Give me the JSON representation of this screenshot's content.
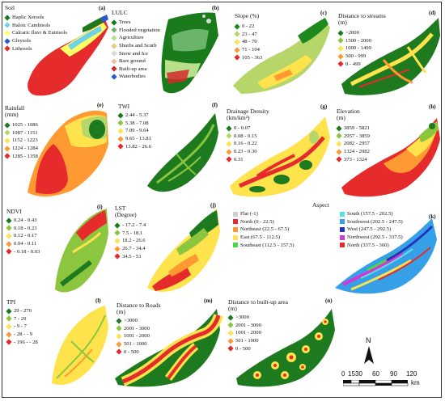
{
  "panels": [
    {
      "id": "soil",
      "label": "(a)",
      "title": "Soil",
      "legend_items": [
        {
          "text": "Haplic Xersols",
          "color": "#1e7a1e"
        },
        {
          "text": "Haloic Cambisols",
          "color": "#6fd2e6"
        },
        {
          "text": "Calcaric fluvi & Eutrisols",
          "color": "#ffff66"
        },
        {
          "text": "Gleysols",
          "color": "#2f57c9"
        },
        {
          "text": "Lithosols",
          "color": "#e52b2b"
        }
      ]
    },
    {
      "id": "lulc",
      "label": "(b)",
      "title": "LULC",
      "legend_items": [
        {
          "text": "Trees",
          "color": "#1b7a1b"
        },
        {
          "text": "Flooded vegetation",
          "color": "#6ab56a"
        },
        {
          "text": "Agriculture",
          "color": "#b8e08a"
        },
        {
          "text": "Shurbs and Scurb",
          "color": "#d9d07a"
        },
        {
          "text": "Snow and Ice",
          "color": "#d9d9d9"
        },
        {
          "text": "Bare ground",
          "color": "#e7c6a0"
        },
        {
          "text": "Built-up area",
          "color": "#d22a2a"
        },
        {
          "text": "Waterbodies",
          "color": "#2f57c9"
        }
      ]
    },
    {
      "id": "slope",
      "label": "(c)",
      "title": "Slope (%)",
      "legend_items": [
        {
          "text": "0 - 22",
          "color": "#1e8a1e"
        },
        {
          "text": "23 - 47",
          "color": "#b6d66a"
        },
        {
          "text": "48 - 70",
          "color": "#ffe34d"
        },
        {
          "text": "71 - 104",
          "color": "#ff9a33"
        },
        {
          "text": "105 - 363",
          "color": "#e52b2b"
        }
      ]
    },
    {
      "id": "streams",
      "label": "(d)",
      "title": "Distance to streams\n(m)",
      "legend_items": [
        {
          "text": ">2000",
          "color": "#1e7a1e"
        },
        {
          "text": "1500 - 2000",
          "color": "#8cc63f"
        },
        {
          "text": "1000 - 1499",
          "color": "#ffe34d"
        },
        {
          "text": "500 - 999",
          "color": "#ff9a33"
        },
        {
          "text": "0 - 499",
          "color": "#e52b2b"
        }
      ]
    },
    {
      "id": "rainfall",
      "label": "(e)",
      "title": "Rainfall\n(mm)",
      "legend_items": [
        {
          "text": "1025 - 1086",
          "color": "#1e7a1e"
        },
        {
          "text": "1087 - 1151",
          "color": "#b6d66a"
        },
        {
          "text": "1152 - 1223",
          "color": "#ffe34d"
        },
        {
          "text": "1224 - 1284",
          "color": "#ff9a33"
        },
        {
          "text": "1285 - 1358",
          "color": "#e52b2b"
        }
      ]
    },
    {
      "id": "twi",
      "label": "(f)",
      "title": "TWI",
      "legend_items": [
        {
          "text": "2.44 - 5.37",
          "color": "#1e7a1e"
        },
        {
          "text": "5.38 - 7.08",
          "color": "#8cc63f"
        },
        {
          "text": "7.09 - 9.64",
          "color": "#ffe34d"
        },
        {
          "text": "9.65 - 13.81",
          "color": "#ff9a33"
        },
        {
          "text": "13.82 - 26.6",
          "color": "#e52b2b"
        }
      ]
    },
    {
      "id": "drainage",
      "label": "(g)",
      "title": "Drainage Density\n(km/km²)",
      "legend_items": [
        {
          "text": "0 - 0.07",
          "color": "#1e7a1e"
        },
        {
          "text": "0.08 - 0.15",
          "color": "#b6d66a"
        },
        {
          "text": "0.16 - 0.22",
          "color": "#ffe34d"
        },
        {
          "text": "0.23 - 0.30",
          "color": "#ff9a33"
        },
        {
          "text": "0.31",
          "color": "#e52b2b"
        }
      ]
    },
    {
      "id": "elevation",
      "label": "(h)",
      "title": "Elevation\n(m)",
      "legend_items": [
        {
          "text": "3859 - 5821",
          "color": "#1e7a1e"
        },
        {
          "text": "2957 - 3859",
          "color": "#8cc63f"
        },
        {
          "text": "2082 - 2957",
          "color": "#ffe34d"
        },
        {
          "text": "1324 - 2082",
          "color": "#ff9a33"
        },
        {
          "text": "373 - 1324",
          "color": "#e52b2b"
        }
      ]
    },
    {
      "id": "ndvi",
      "label": "(i)",
      "title": "NDVI",
      "legend_items": [
        {
          "text": "0.24 - 0.43",
          "color": "#1e7a1e"
        },
        {
          "text": "0.18 - 0.23",
          "color": "#8cc63f"
        },
        {
          "text": "0.12 - 0.17",
          "color": "#ffe34d"
        },
        {
          "text": "0.04 - 0.11",
          "color": "#ff9a33"
        },
        {
          "text": "- 0.18 - 0.03",
          "color": "#e52b2b"
        }
      ]
    },
    {
      "id": "lst",
      "label": "(j)",
      "title": "LST\n(Degree)",
      "legend_items": [
        {
          "text": "- 17.2 - 7.4",
          "color": "#1e7a1e"
        },
        {
          "text": "7.5 - 18.1",
          "color": "#8cc63f"
        },
        {
          "text": "18.2 - 26.6",
          "color": "#ffe34d"
        },
        {
          "text": "26.7 - 34.4",
          "color": "#ff9a33"
        },
        {
          "text": "34.5 - 51",
          "color": "#e52b2b"
        }
      ]
    },
    {
      "id": "aspect",
      "label": "(k)",
      "title": "Aspect",
      "legend_items": [
        {
          "text": "Flat (-1)",
          "color": "#cfcfcf"
        },
        {
          "text": "North (0 - 22.5)",
          "color": "#e52b2b"
        },
        {
          "text": "Northeast (22.5 - 67.5)",
          "color": "#ff9a33"
        },
        {
          "text": "East (67.5 - 112.5)",
          "color": "#ffe34d"
        },
        {
          "text": "Southeast (112.5 - 157.5)",
          "color": "#4cd44c"
        },
        {
          "text": "South (157.5 - 202.5)",
          "color": "#5fe0e0"
        },
        {
          "text": "Southwest (202.5 - 247.5)",
          "color": "#35a0e8"
        },
        {
          "text": "West (247.5 - 292.5)",
          "color": "#2233cc"
        },
        {
          "text": "Northwest (292.5 - 337.5)",
          "color": "#d437d4"
        },
        {
          "text": "North (337.5 - 360)",
          "color": "#e52b2b"
        }
      ]
    },
    {
      "id": "tpi",
      "label": "(l)",
      "title": "TPI",
      "legend_items": [
        {
          "text": "29 - 270",
          "color": "#1e7a1e"
        },
        {
          "text": "7 - 29",
          "color": "#8cc63f"
        },
        {
          "text": "- 9 - 7",
          "color": "#ffe34d"
        },
        {
          "text": "- 28 - - 9",
          "color": "#ff9a33"
        },
        {
          "text": "- 196 - - 28",
          "color": "#e52b2b"
        }
      ]
    },
    {
      "id": "roads",
      "label": "(m)",
      "title": "Distance to Roads\n(m)",
      "legend_items": [
        {
          "text": ">3000",
          "color": "#1e7a1e"
        },
        {
          "text": "2001 - 3000",
          "color": "#8cc63f"
        },
        {
          "text": "1001 - 2000",
          "color": "#ffe34d"
        },
        {
          "text": "501 - 1000",
          "color": "#ff9a33"
        },
        {
          "text": "0 - 500",
          "color": "#e52b2b"
        }
      ]
    },
    {
      "id": "builtup",
      "label": "(n)",
      "title": "Distance to built-up area\n(m)",
      "legend_items": [
        {
          "text": ">3000",
          "color": "#1e7a1e"
        },
        {
          "text": "2001 - 3000",
          "color": "#8cc63f"
        },
        {
          "text": "1001 - 2000",
          "color": "#ffe34d"
        },
        {
          "text": "501 - 1000",
          "color": "#ff9a33"
        },
        {
          "text": "0 - 500",
          "color": "#e52b2b"
        }
      ]
    }
  ],
  "north_arrow": {
    "label": "N"
  },
  "scale_bar": {
    "ticks": [
      "0",
      "15",
      "30",
      "60",
      "90",
      "120"
    ],
    "unit": "km"
  }
}
